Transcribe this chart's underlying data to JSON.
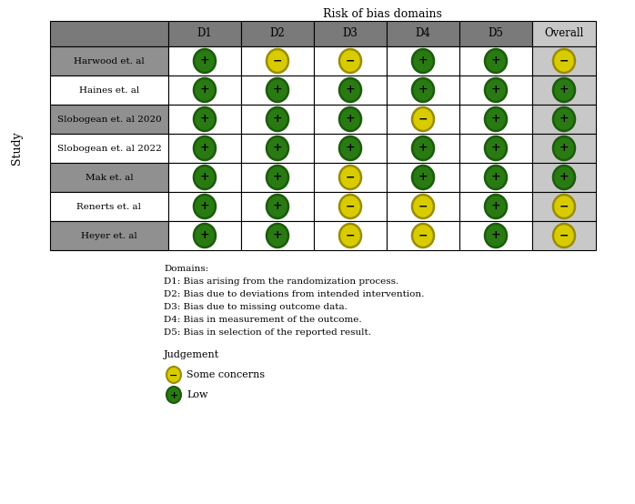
{
  "title": "Risk of bias domains",
  "ylabel": "Study",
  "col_headers": [
    "D1",
    "D2",
    "D3",
    "D4",
    "D5",
    "Overall"
  ],
  "row_labels": [
    "Harwood et. al",
    "Haines et. al",
    "Slobogean et. al 2020",
    "Slobogean et. al 2022",
    "Mak et. al",
    "Renerts et. al",
    "Heyer et. al"
  ],
  "data": [
    [
      "G",
      "Y",
      "Y",
      "G",
      "G",
      "Y"
    ],
    [
      "G",
      "G",
      "G",
      "G",
      "G",
      "G"
    ],
    [
      "G",
      "G",
      "G",
      "Y",
      "G",
      "G"
    ],
    [
      "G",
      "G",
      "G",
      "G",
      "G",
      "G"
    ],
    [
      "G",
      "G",
      "Y",
      "G",
      "G",
      "G"
    ],
    [
      "G",
      "G",
      "Y",
      "Y",
      "G",
      "Y"
    ],
    [
      "G",
      "G",
      "Y",
      "Y",
      "G",
      "Y"
    ]
  ],
  "green_color": "#2a7a14",
  "yellow_color": "#d8cc00",
  "green_edge": "#1a5c0a",
  "yellow_edge": "#9a8c00",
  "header_bg": "#7a7a7a",
  "row_bg_gray": "#909090",
  "row_bg_white": "#ffffff",
  "overall_col_bg": "#c8c8c8",
  "cell_bg_white": "#ffffff",
  "domain_lines": [
    "Domains:",
    "D1: Bias arising from the randomization process.",
    "D2: Bias due to deviations from intended intervention.",
    "D3: Bias due to missing outcome data.",
    "D4: Bias in measurement of the outcome.",
    "D5: Bias in selection of the reported result."
  ],
  "judgement_label": "Judgement",
  "legend": [
    {
      "color": "#d8cc00",
      "edge": "#9a8c00",
      "symbol": "−",
      "label": "Some concerns"
    },
    {
      "color": "#2a7a14",
      "edge": "#1a5c0a",
      "symbol": "+",
      "label": "Low"
    }
  ],
  "title_fontsize": 9,
  "header_fontsize": 8.5,
  "label_fontsize": 7.5,
  "symbol_fontsize": 9,
  "domain_fontsize": 7.5,
  "judge_fontsize": 8
}
